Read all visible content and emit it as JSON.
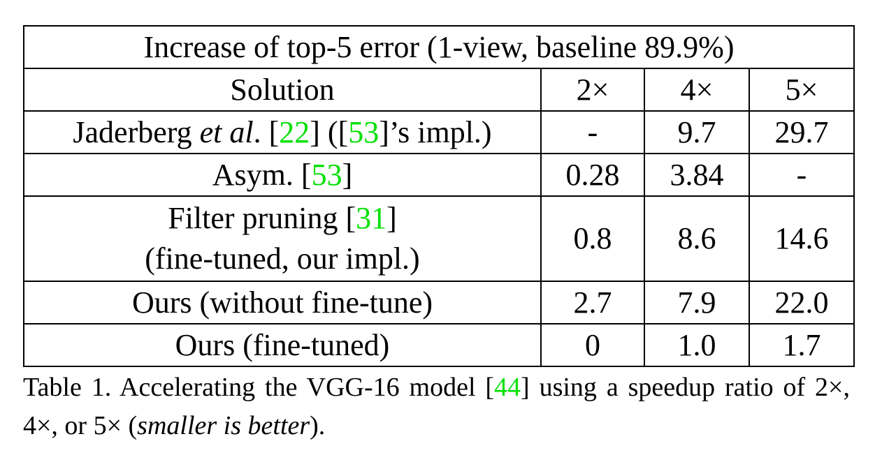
{
  "table": {
    "title": "Increase of top-5 error (1-view, baseline 89.9%)",
    "header": [
      "Solution",
      "2×",
      "4×",
      "5×"
    ],
    "rows": [
      {
        "solution": [
          "Jaderberg ",
          "et al",
          ". [",
          "22",
          "] ([",
          "53",
          "]’s impl.)"
        ],
        "values": [
          "-",
          "9.7",
          "29.7"
        ]
      },
      {
        "solution": [
          "Asym. [",
          "53",
          "]"
        ],
        "values": [
          "0.28",
          "3.84",
          "-"
        ]
      },
      {
        "solution": [
          "Filter pruning [",
          "31",
          "]",
          "(fine-tuned, our impl.)"
        ],
        "values": [
          "0.8",
          "8.6",
          "14.6"
        ]
      },
      {
        "solution": [
          "Ours (without fine-tune)"
        ],
        "values": [
          "2.7",
          "7.9",
          "22.0"
        ]
      },
      {
        "solution": [
          "Ours (fine-tuned)"
        ],
        "values": [
          "0",
          "1.0",
          "1.7"
        ]
      }
    ]
  },
  "caption": [
    "Table 1. Accelerating the VGG-16 model [",
    "44",
    "] using a speedup ratio of 2×, 4×, or 5× (",
    "smaller is better",
    ")."
  ]
}
